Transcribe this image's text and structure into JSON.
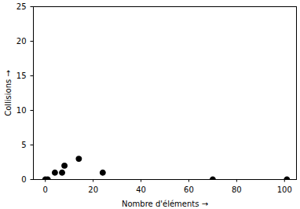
{
  "chart_data": {
    "type": "scatter",
    "x_label": "Nombre d'éléments",
    "y_label": "Collisions",
    "x": [
      0,
      1,
      4,
      7,
      8,
      14,
      24,
      70,
      101
    ],
    "values": [
      0,
      0,
      1,
      1,
      2,
      3,
      1,
      0,
      0
    ],
    "color": "#000000",
    "marker": "circle",
    "xlim": [
      -5,
      105
    ],
    "xticks": [
      0,
      20,
      40,
      60,
      80,
      100
    ],
    "ylim": [
      0,
      25
    ],
    "yticks": [
      0,
      5,
      10,
      15,
      20,
      25
    ],
    "grid": false
  }
}
